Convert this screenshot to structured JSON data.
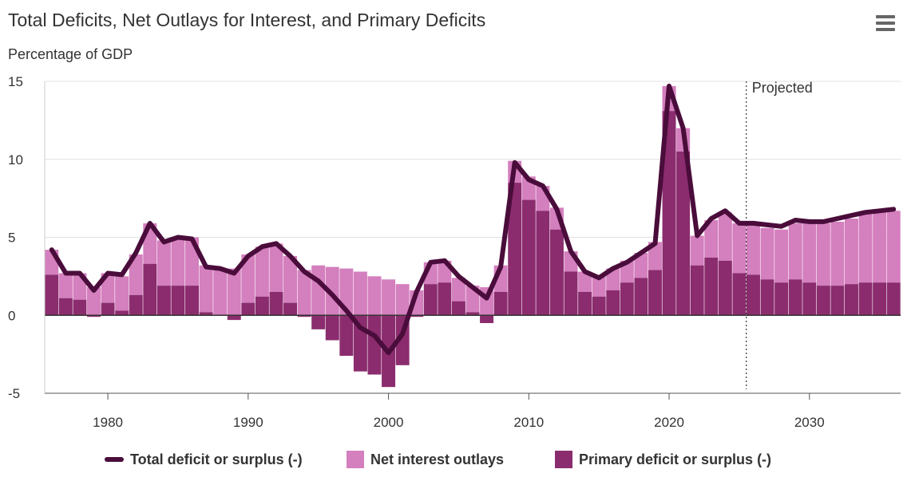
{
  "header": {
    "title": "Total Deficits, Net Outlays for Interest, and Primary Deficits",
    "subtitle": "Percentage of GDP",
    "menu_icon": "hamburger-menu-icon"
  },
  "colors": {
    "total": "#4a0d3b",
    "interest": "#d47fbe",
    "primary": "#8b2c6e",
    "projected_line": "#333333"
  },
  "chart_data": {
    "type": "bar+line",
    "title": "Total Deficits, Net Outlays for Interest, and Primary Deficits",
    "ylabel": "Percentage of GDP",
    "xlabel": "",
    "ylim": [
      -5,
      15
    ],
    "yticks": [
      -5,
      0,
      5,
      10,
      15
    ],
    "xticks": [
      1980,
      1990,
      2000,
      2010,
      2020,
      2030
    ],
    "xlim": [
      1975.5,
      2036.5
    ],
    "projected_label": "Projected",
    "projected_from": 2025.5,
    "legend": [
      "Total deficit or surplus (-)",
      "Net interest outlays",
      "Primary deficit or surplus (-)"
    ],
    "years": [
      1976,
      1977,
      1978,
      1979,
      1980,
      1981,
      1982,
      1983,
      1984,
      1985,
      1986,
      1987,
      1988,
      1989,
      1990,
      1991,
      1992,
      1993,
      1994,
      1995,
      1996,
      1997,
      1998,
      1999,
      2000,
      2001,
      2002,
      2003,
      2004,
      2005,
      2006,
      2007,
      2008,
      2009,
      2010,
      2011,
      2012,
      2013,
      2014,
      2015,
      2016,
      2017,
      2018,
      2019,
      2020,
      2021,
      2022,
      2023,
      2024,
      2025,
      2026,
      2027,
      2028,
      2029,
      2030,
      2031,
      2032,
      2033,
      2034,
      2035,
      2036
    ],
    "series": [
      {
        "name": "Net interest outlays",
        "values": [
          1.6,
          1.6,
          1.7,
          1.8,
          1.9,
          2.2,
          2.6,
          2.6,
          2.9,
          3.1,
          3.1,
          3.0,
          2.9,
          3.0,
          3.1,
          3.2,
          3.1,
          3.0,
          2.9,
          3.2,
          3.1,
          3.0,
          2.8,
          2.5,
          2.3,
          2.0,
          1.6,
          1.4,
          1.4,
          1.5,
          1.7,
          1.8,
          1.7,
          1.4,
          1.5,
          1.6,
          1.4,
          1.3,
          1.3,
          1.3,
          1.4,
          1.4,
          1.6,
          1.8,
          1.6,
          1.5,
          1.9,
          2.4,
          3.1,
          3.2,
          3.2,
          3.3,
          3.4,
          3.6,
          3.8,
          4.0,
          4.1,
          4.2,
          4.4,
          4.5,
          4.6
        ]
      },
      {
        "name": "Primary deficit or surplus (-)",
        "values": [
          2.6,
          1.1,
          1.0,
          -0.1,
          0.8,
          0.3,
          1.3,
          3.3,
          1.9,
          1.9,
          1.9,
          0.2,
          0.0,
          -0.3,
          0.8,
          1.2,
          1.5,
          0.8,
          -0.1,
          -0.9,
          -1.6,
          -2.6,
          -3.6,
          -3.8,
          -4.6,
          -3.2,
          -0.1,
          2.0,
          2.1,
          0.9,
          0.2,
          -0.5,
          1.5,
          8.5,
          7.4,
          6.7,
          5.5,
          2.8,
          1.5,
          1.2,
          1.6,
          2.1,
          2.4,
          2.9,
          13.1,
          10.5,
          3.2,
          3.7,
          3.5,
          2.7,
          2.6,
          2.3,
          2.1,
          2.3,
          2.1,
          1.9,
          1.9,
          2.0,
          2.1,
          2.1,
          2.1
        ]
      },
      {
        "name": "Total deficit or surplus (-)",
        "values": [
          4.2,
          2.7,
          2.7,
          1.6,
          2.7,
          2.6,
          4.0,
          5.9,
          4.7,
          5.0,
          4.9,
          3.1,
          3.0,
          2.7,
          3.8,
          4.4,
          4.6,
          3.8,
          2.8,
          2.2,
          1.3,
          0.3,
          -0.8,
          -1.3,
          -2.4,
          -1.2,
          1.5,
          3.4,
          3.5,
          2.5,
          1.8,
          1.1,
          3.1,
          9.8,
          8.7,
          8.3,
          6.8,
          4.1,
          2.8,
          2.4,
          3.0,
          3.4,
          4.0,
          4.6,
          14.7,
          12.0,
          5.1,
          6.2,
          6.7,
          5.9,
          5.9,
          5.8,
          5.7,
          6.1,
          6.0,
          6.0,
          6.2,
          6.4,
          6.6,
          6.7,
          6.8
        ]
      }
    ]
  },
  "legend": {
    "total_label": "Total deficit or surplus (-)",
    "interest_label": "Net interest outlays",
    "primary_label": "Primary deficit or surplus (-)"
  }
}
